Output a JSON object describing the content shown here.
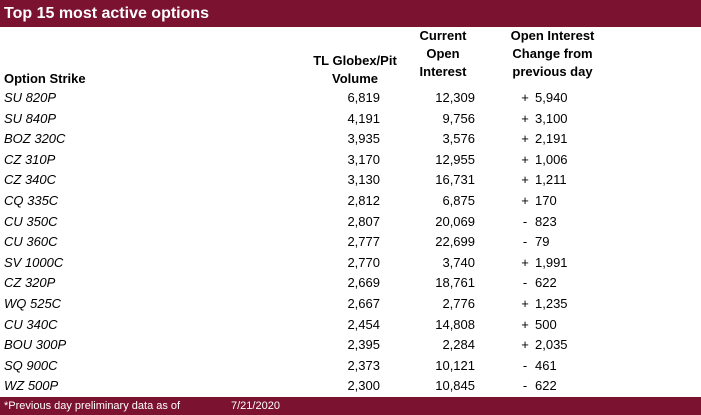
{
  "title": "Top 15 most active options",
  "headers": {
    "strike": "Option Strike",
    "volume": [
      "TL Globex/Pit",
      "Volume"
    ],
    "open_interest": [
      "Current",
      "Open",
      "Interest"
    ],
    "change": [
      "Open Interest",
      "Change from",
      "previous day"
    ]
  },
  "rows": [
    {
      "strike": "SU 820P",
      "volume": "6,819",
      "oi": "12,309",
      "sign": "+",
      "change": "5,940"
    },
    {
      "strike": "SU 840P",
      "volume": "4,191",
      "oi": "9,756",
      "sign": "+",
      "change": "3,100"
    },
    {
      "strike": "BOZ 320C",
      "volume": "3,935",
      "oi": "3,576",
      "sign": "+",
      "change": "2,191"
    },
    {
      "strike": "CZ 310P",
      "volume": "3,170",
      "oi": "12,955",
      "sign": "+",
      "change": "1,006"
    },
    {
      "strike": "CZ 340C",
      "volume": "3,130",
      "oi": "16,731",
      "sign": "+",
      "change": "1,211"
    },
    {
      "strike": "CQ 335C",
      "volume": "2,812",
      "oi": "6,875",
      "sign": "+",
      "change": "170"
    },
    {
      "strike": "CU 350C",
      "volume": "2,807",
      "oi": "20,069",
      "sign": "-",
      "change": "823"
    },
    {
      "strike": "CU 360C",
      "volume": "2,777",
      "oi": "22,699",
      "sign": "-",
      "change": "79"
    },
    {
      "strike": "SV 1000C",
      "volume": "2,770",
      "oi": "3,740",
      "sign": "+",
      "change": "1,991"
    },
    {
      "strike": "CZ 320P",
      "volume": "2,669",
      "oi": "18,761",
      "sign": "-",
      "change": "622"
    },
    {
      "strike": "WQ 525C",
      "volume": "2,667",
      "oi": "2,776",
      "sign": "+",
      "change": "1,235"
    },
    {
      "strike": "CU 340C",
      "volume": "2,454",
      "oi": "14,808",
      "sign": "+",
      "change": "500"
    },
    {
      "strike": "BOU 300P",
      "volume": "2,395",
      "oi": "2,284",
      "sign": "+",
      "change": "2,035"
    },
    {
      "strike": "SQ 900C",
      "volume": "2,373",
      "oi": "10,121",
      "sign": "-",
      "change": "461"
    },
    {
      "strike": "WZ 500P",
      "volume": "2,300",
      "oi": "10,845",
      "sign": "-",
      "change": "622"
    }
  ],
  "footer": {
    "note": "*Previous day preliminary data as of",
    "date": "7/21/2020"
  },
  "colors": {
    "brand": "#7b1230"
  }
}
